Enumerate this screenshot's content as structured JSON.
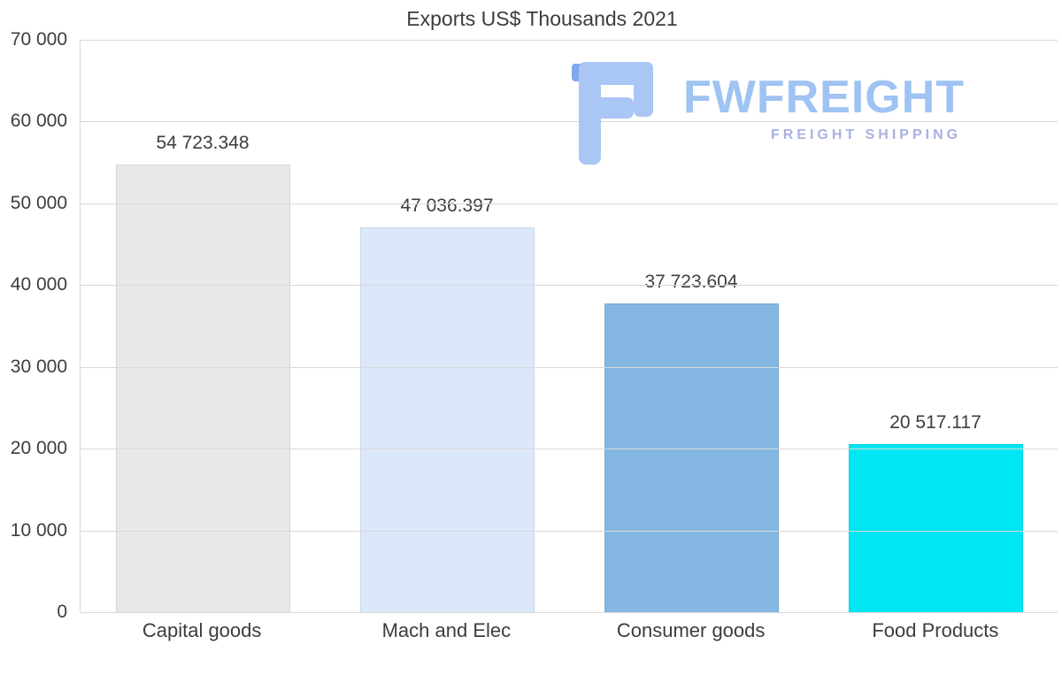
{
  "chart_data": {
    "type": "bar",
    "title": "Exports US$ Thousands 2021",
    "categories": [
      "Capital goods",
      "Mach and Elec",
      "Consumer goods",
      "Food Products"
    ],
    "values": [
      54723.348,
      47036.397,
      37723.604,
      20517.117
    ],
    "value_labels": [
      "54 723.348",
      "47 036.397",
      "37 723.604",
      "20 517.117"
    ],
    "bar_colors": [
      "#e8e8e8",
      "#dbe8f9",
      "#84b7e1",
      "#00e6f2"
    ],
    "ylim": [
      0,
      70000
    ],
    "yticks": [
      0,
      10000,
      20000,
      30000,
      40000,
      50000,
      60000,
      70000
    ],
    "ytick_labels": [
      "0",
      "10 000",
      "20 000",
      "30 000",
      "40 000",
      "50 000",
      "60 000",
      "70 000"
    ],
    "grid": true,
    "legend": false,
    "xlabel": "",
    "ylabel": ""
  },
  "logo": {
    "name": "FWFREIGHT",
    "tagline": "FREIGHT SHIPPING",
    "mark_color": "#a9c6f5",
    "mark_accent_color": "#7fa9ea",
    "brand_color": "#9fc3f2",
    "tagline_color": "#a9b2e2"
  }
}
